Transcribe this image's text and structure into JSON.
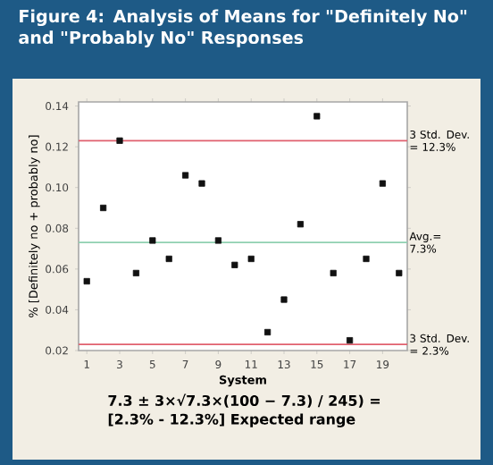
{
  "chart_data": {
    "type": "scatter",
    "title": "Figure 4: Analysis of Means for \"Definitely No\" and \"Probably No\" Responses",
    "xlabel": "System",
    "ylabel": "% [Definitely no + probably no]",
    "x": [
      1,
      2,
      3,
      4,
      5,
      6,
      7,
      8,
      9,
      10,
      11,
      12,
      13,
      14,
      15,
      16,
      17,
      18,
      19,
      20
    ],
    "values": [
      0.054,
      0.09,
      0.123,
      0.058,
      0.074,
      0.065,
      0.106,
      0.102,
      0.074,
      0.062,
      0.065,
      0.029,
      0.045,
      0.082,
      0.135,
      0.058,
      0.025,
      0.065,
      0.102,
      0.058
    ],
    "color": "#111111",
    "marker": "square",
    "xlim": [
      0.5,
      20.5
    ],
    "xticks": [
      1,
      3,
      5,
      7,
      9,
      11,
      13,
      15,
      17,
      19
    ],
    "ylim": [
      0.02,
      0.142
    ],
    "yticks": [
      0.02,
      0.04,
      0.06,
      0.08,
      {
        "value": 0.1,
        "label": "0.10"
      },
      0.12,
      0.14
    ],
    "ref_lines": [
      {
        "axis": "y",
        "value": 0.123,
        "label": "3 Std. Dev. = 12.3%",
        "color": "#e0606e"
      },
      {
        "axis": "y",
        "value": 0.073,
        "label": "Avg.= 7.3%",
        "color": "#8fd0b0"
      },
      {
        "axis": "y",
        "value": 0.023,
        "label": "3 Std. Dev. = 2.3%",
        "color": "#e0606e"
      }
    ],
    "annotations": [
      "7.3 ± 3×√7.3×(100 − 7.3) / 245) =",
      "[2.3% - 12.3%] Expected range"
    ]
  }
}
